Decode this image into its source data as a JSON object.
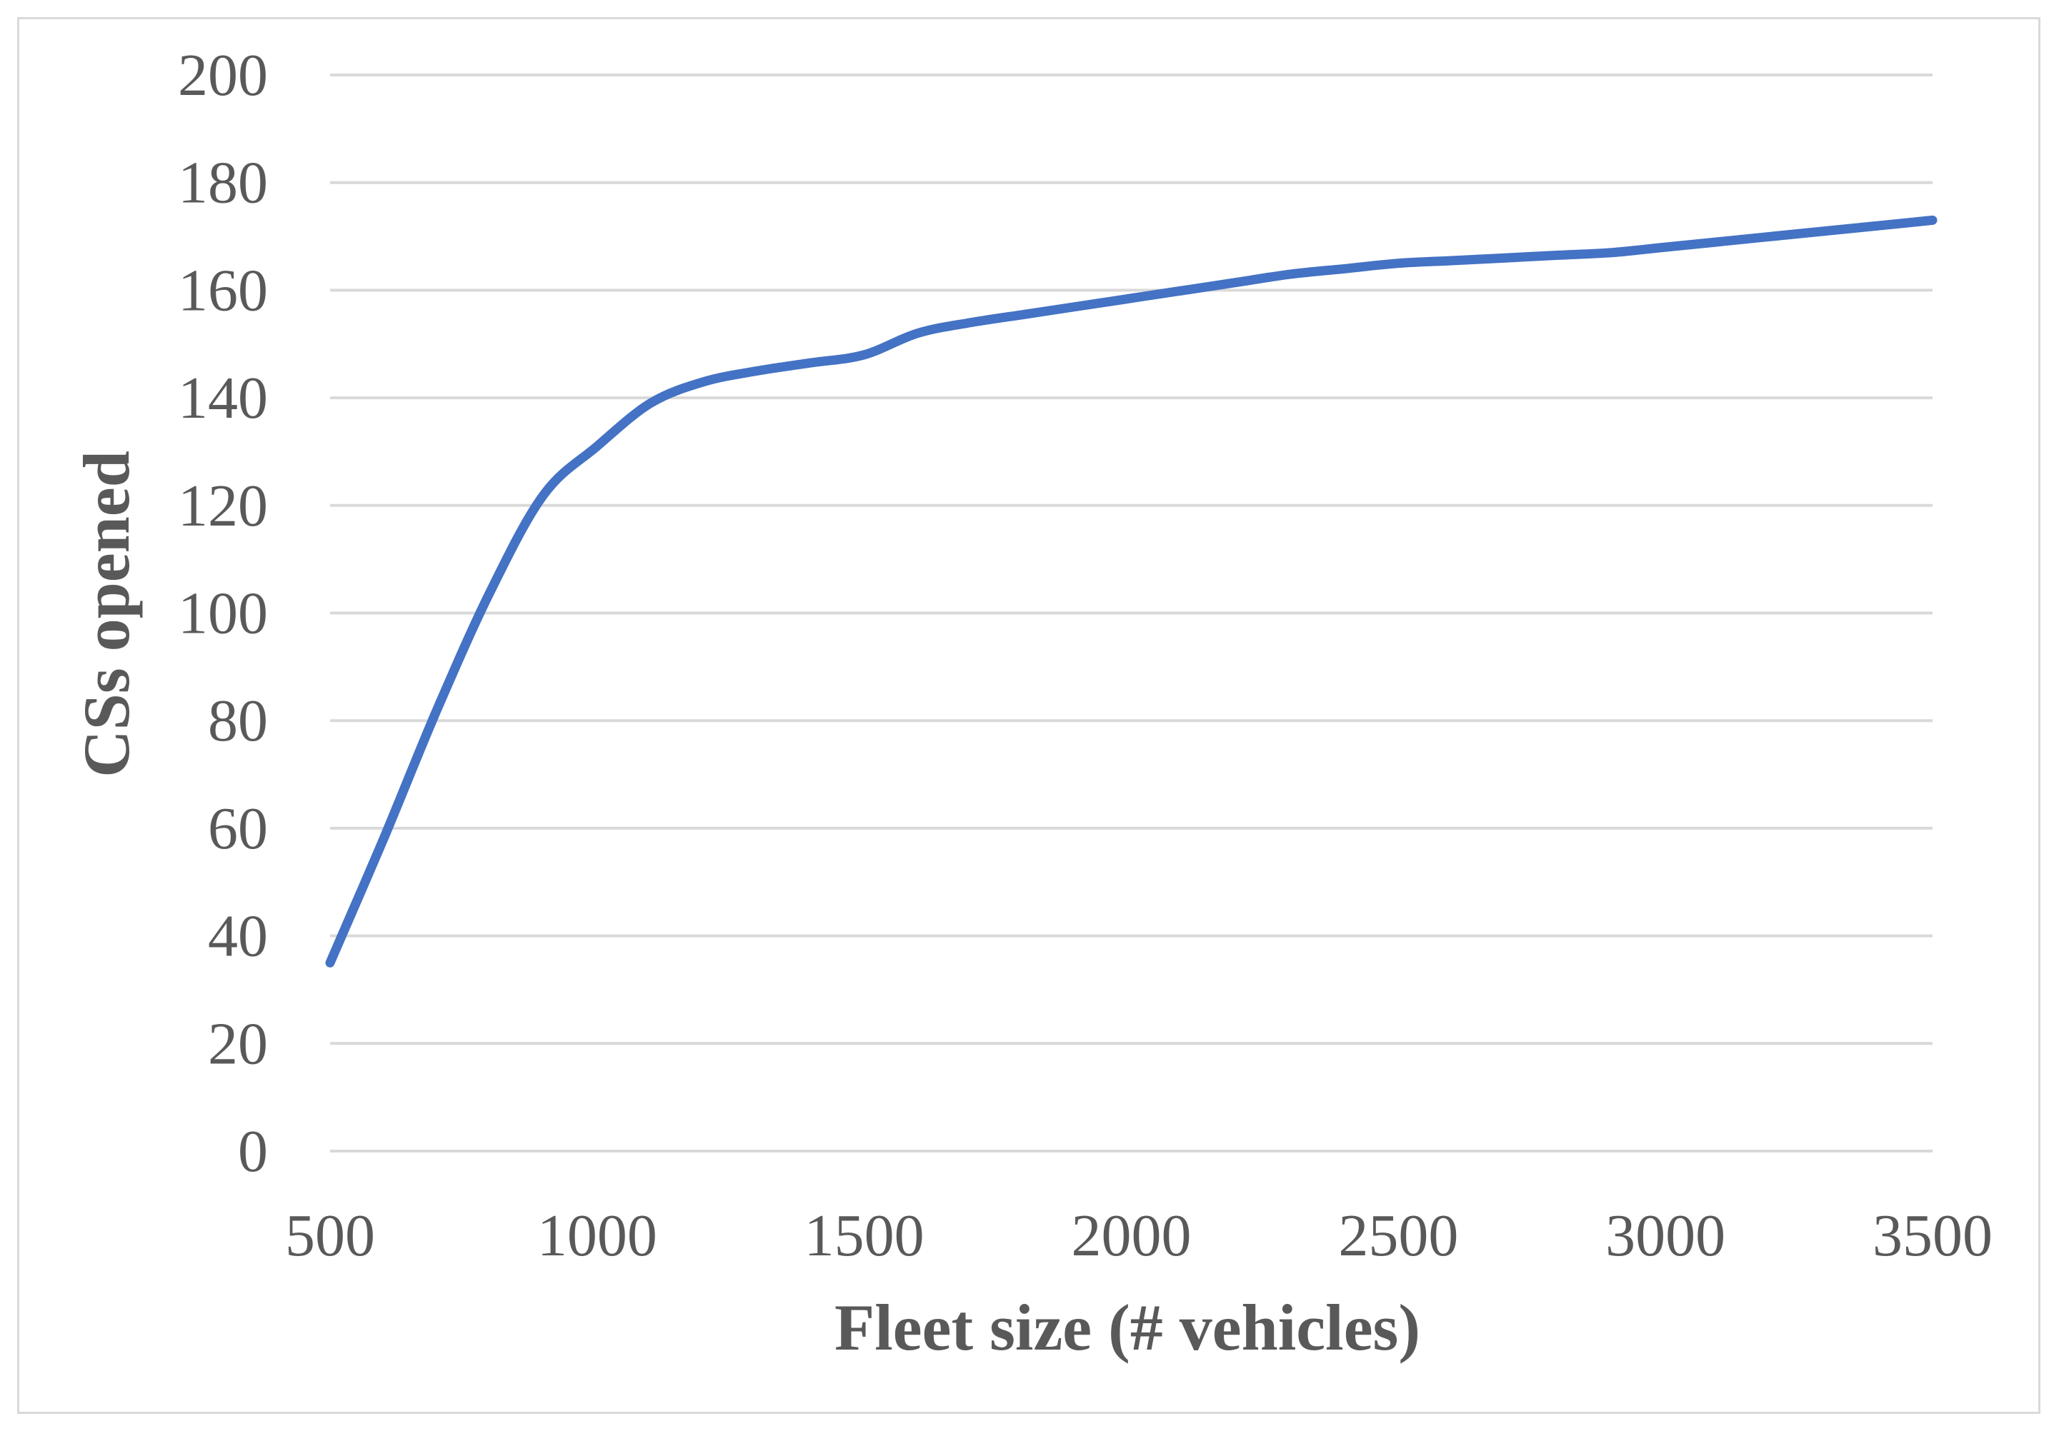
{
  "chart_data": {
    "type": "line",
    "title": "",
    "xlabel": "Fleet size (# vehicles)",
    "ylabel": "CSs opened",
    "xlim": [
      500,
      3500
    ],
    "ylim": [
      0,
      200
    ],
    "x_ticks": [
      500,
      1000,
      1500,
      2000,
      2500,
      3000,
      3500
    ],
    "y_ticks": [
      0,
      20,
      40,
      60,
      80,
      100,
      120,
      140,
      160,
      180,
      200
    ],
    "grid": true,
    "legend": "none",
    "series": [
      {
        "color": "#4472C4",
        "x": [
          500,
          600,
          700,
          800,
          900,
          1000,
          1100,
          1200,
          1300,
          1400,
          1500,
          1600,
          1700,
          1800,
          1900,
          2000,
          2100,
          2200,
          2300,
          2400,
          2500,
          2600,
          2700,
          2800,
          2900,
          3000,
          3100,
          3200,
          3300,
          3400,
          3500
        ],
        "y": [
          35,
          58,
          82,
          104,
          122,
          131,
          139,
          143,
          145,
          146.5,
          148,
          152,
          154,
          155.5,
          157,
          158.5,
          160,
          161.5,
          163,
          164,
          165,
          165.5,
          166,
          166.5,
          167,
          168,
          169,
          170,
          171,
          172,
          173
        ]
      }
    ]
  }
}
